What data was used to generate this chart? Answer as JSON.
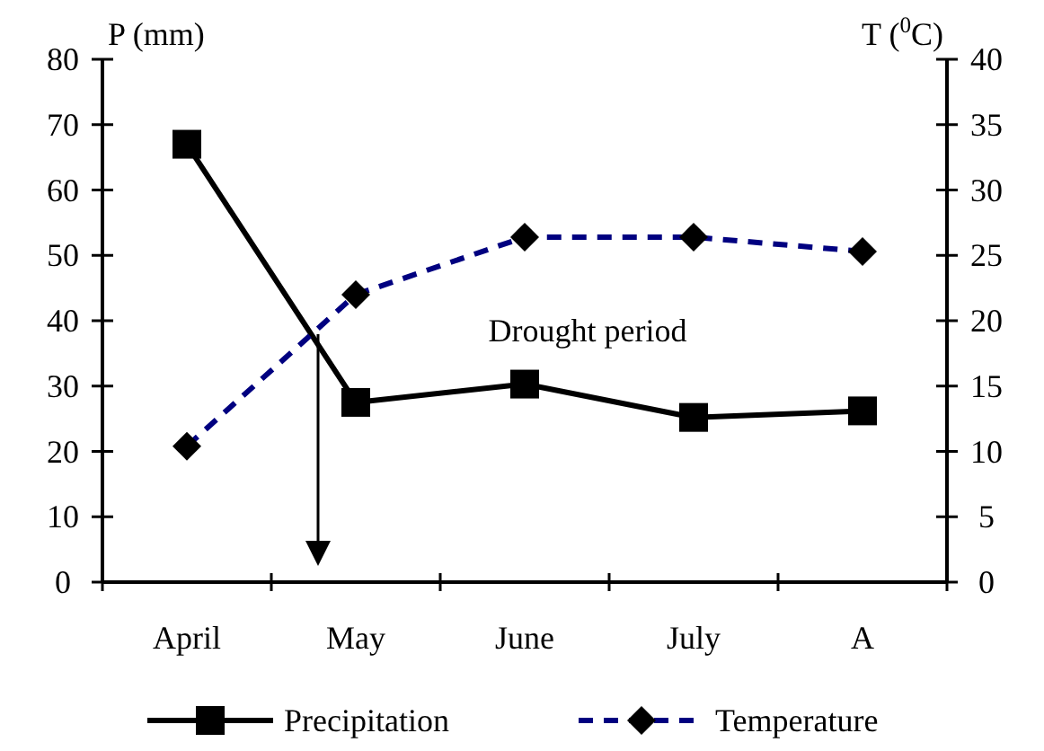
{
  "chart_data": {
    "type": "line",
    "categories": [
      "April",
      "May",
      "June",
      "July",
      "A"
    ],
    "ylabel": "P (mm)",
    "y2label": "T ($^{0}$C)",
    "series": [
      {
        "name": "Precipitation",
        "color": "#000000",
        "values": [
          67,
          27.5,
          30.3,
          25.2,
          26.2
        ],
        "marker": "square",
        "line_style": "solid"
      },
      {
        "name": "Temperature",
        "color": "#000080",
        "values": [
          10.4,
          22,
          26.4,
          26.4,
          25.3
        ],
        "marker": "diamond",
        "line_style": "dashed",
        "axis": "y2"
      }
    ],
    "ylim": [
      0,
      80
    ],
    "yticks": [
      0,
      10,
      20,
      30,
      40,
      50,
      60,
      70,
      80
    ],
    "y2lim": [
      0,
      40
    ],
    "y2ticks": [
      0,
      5,
      10,
      15,
      20,
      25,
      30,
      35,
      40
    ],
    "annotations": [
      "Drought period"
    ],
    "grid": false,
    "legend": "bottom"
  }
}
